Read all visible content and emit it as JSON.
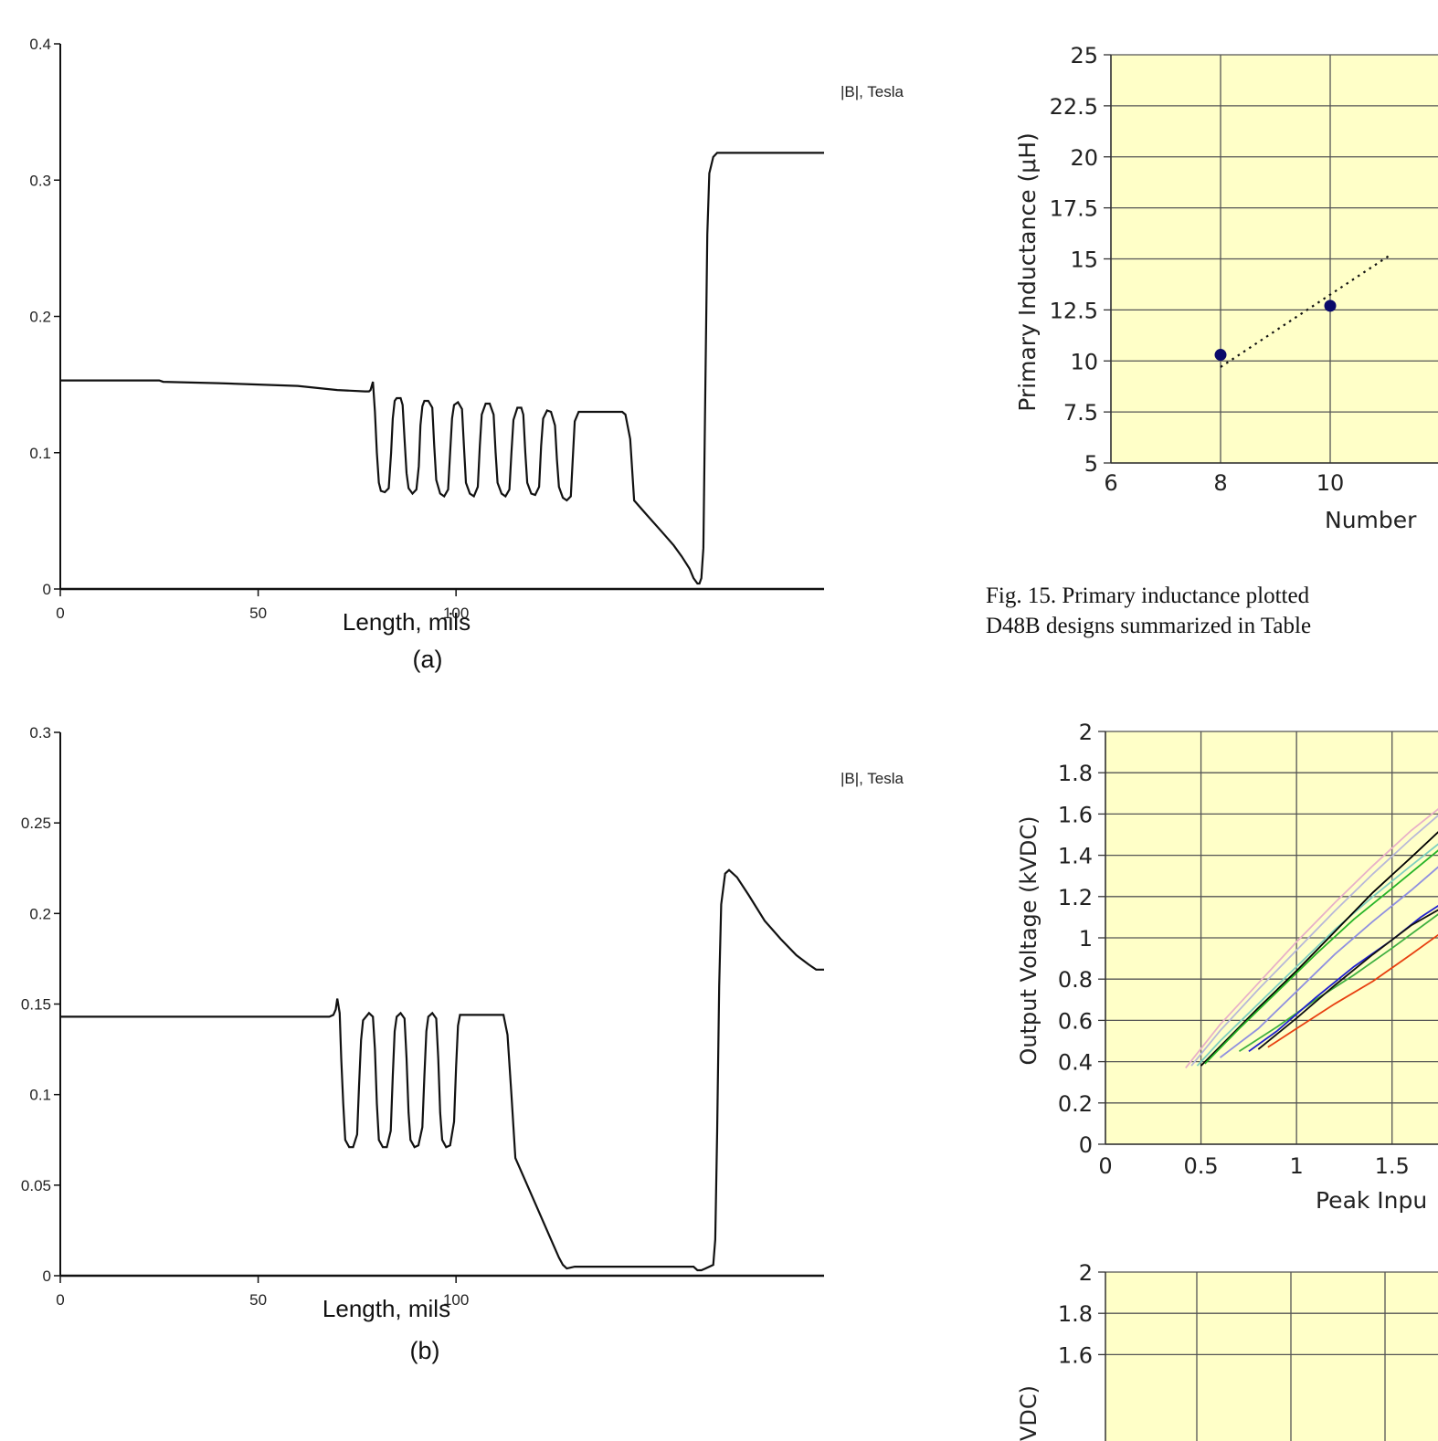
{
  "chart_data": [
    {
      "id": "fig_a",
      "type": "line",
      "sublabel": "(a)",
      "xlabel": "Length, mils",
      "ylabel": "",
      "series_label": "|B|, Tesla",
      "xlim": [
        0,
        193
      ],
      "ylim": [
        0,
        0.4
      ],
      "xticks": [
        "0",
        "50",
        "100"
      ],
      "yticks": [
        "0",
        "0.1",
        "0.2",
        "0.3",
        "0.4"
      ],
      "grid": false,
      "points": [
        [
          0,
          0.153
        ],
        [
          25,
          0.153
        ],
        [
          26,
          0.152
        ],
        [
          40,
          0.151
        ],
        [
          50,
          0.15
        ],
        [
          60,
          0.149
        ],
        [
          70,
          0.146
        ],
        [
          77,
          0.145
        ],
        [
          78,
          0.145
        ],
        [
          78.4,
          0.146
        ],
        [
          79,
          0.152
        ],
        [
          79.5,
          0.13
        ],
        [
          80,
          0.1
        ],
        [
          80.5,
          0.078
        ],
        [
          81,
          0.072
        ],
        [
          82,
          0.071
        ],
        [
          83,
          0.074
        ],
        [
          83.6,
          0.1
        ],
        [
          84,
          0.125
        ],
        [
          84.5,
          0.138
        ],
        [
          85,
          0.14
        ],
        [
          86,
          0.14
        ],
        [
          86.5,
          0.135
        ],
        [
          87,
          0.11
        ],
        [
          87.5,
          0.085
        ],
        [
          88,
          0.074
        ],
        [
          89,
          0.07
        ],
        [
          90,
          0.073
        ],
        [
          90.6,
          0.09
        ],
        [
          91,
          0.12
        ],
        [
          91.5,
          0.134
        ],
        [
          92,
          0.138
        ],
        [
          93,
          0.138
        ],
        [
          94,
          0.133
        ],
        [
          94.5,
          0.105
        ],
        [
          95,
          0.08
        ],
        [
          96,
          0.07
        ],
        [
          97,
          0.068
        ],
        [
          98,
          0.073
        ],
        [
          98.5,
          0.1
        ],
        [
          99,
          0.125
        ],
        [
          99.5,
          0.135
        ],
        [
          100.5,
          0.137
        ],
        [
          101.5,
          0.132
        ],
        [
          102,
          0.105
        ],
        [
          102.5,
          0.078
        ],
        [
          103.5,
          0.07
        ],
        [
          104.5,
          0.068
        ],
        [
          105.5,
          0.075
        ],
        [
          106,
          0.105
        ],
        [
          106.5,
          0.128
        ],
        [
          107.5,
          0.136
        ],
        [
          108.5,
          0.136
        ],
        [
          109.5,
          0.128
        ],
        [
          110,
          0.1
        ],
        [
          110.5,
          0.078
        ],
        [
          111.5,
          0.07
        ],
        [
          112.5,
          0.068
        ],
        [
          113.5,
          0.073
        ],
        [
          114,
          0.1
        ],
        [
          114.5,
          0.124
        ],
        [
          115.5,
          0.133
        ],
        [
          116.5,
          0.133
        ],
        [
          117,
          0.128
        ],
        [
          117.5,
          0.1
        ],
        [
          118,
          0.078
        ],
        [
          119,
          0.07
        ],
        [
          120,
          0.069
        ],
        [
          121,
          0.075
        ],
        [
          121.5,
          0.105
        ],
        [
          122,
          0.125
        ],
        [
          123,
          0.131
        ],
        [
          124,
          0.13
        ],
        [
          125,
          0.12
        ],
        [
          125.5,
          0.095
        ],
        [
          126,
          0.075
        ],
        [
          127,
          0.067
        ],
        [
          128,
          0.065
        ],
        [
          129,
          0.068
        ],
        [
          129.5,
          0.095
        ],
        [
          130,
          0.123
        ],
        [
          131,
          0.13
        ],
        [
          138,
          0.13
        ],
        [
          142,
          0.13
        ],
        [
          142.8,
          0.128
        ],
        [
          144,
          0.11
        ],
        [
          145,
          0.065
        ],
        [
          148,
          0.055
        ],
        [
          152,
          0.042
        ],
        [
          155,
          0.032
        ],
        [
          157,
          0.024
        ],
        [
          159,
          0.015
        ],
        [
          160,
          0.008
        ],
        [
          161,
          0.004
        ],
        [
          161.5,
          0.004
        ],
        [
          162,
          0.008
        ],
        [
          162.5,
          0.03
        ],
        [
          163,
          0.15
        ],
        [
          163.5,
          0.26
        ],
        [
          164,
          0.305
        ],
        [
          165,
          0.317
        ],
        [
          166,
          0.32
        ],
        [
          193,
          0.32
        ]
      ]
    },
    {
      "id": "fig_b",
      "type": "line",
      "sublabel": "(b)",
      "xlabel": "Length, mils",
      "ylabel": "",
      "series_label": "|B|, Tesla",
      "xlim": [
        0,
        193
      ],
      "ylim": [
        0,
        0.3
      ],
      "xticks": [
        "0",
        "50",
        "100"
      ],
      "yticks": [
        "0",
        "0.05",
        "0.1",
        "0.15",
        "0.2",
        "0.25",
        "0.3"
      ],
      "grid": false,
      "points": [
        [
          0,
          0.143
        ],
        [
          68,
          0.143
        ],
        [
          69,
          0.144
        ],
        [
          69.6,
          0.147
        ],
        [
          70,
          0.153
        ],
        [
          70.6,
          0.145
        ],
        [
          71,
          0.12
        ],
        [
          71.5,
          0.095
        ],
        [
          72,
          0.075
        ],
        [
          73,
          0.071
        ],
        [
          74,
          0.071
        ],
        [
          75,
          0.078
        ],
        [
          75.5,
          0.105
        ],
        [
          76,
          0.13
        ],
        [
          76.5,
          0.141
        ],
        [
          78,
          0.145
        ],
        [
          79,
          0.143
        ],
        [
          79.5,
          0.125
        ],
        [
          80,
          0.095
        ],
        [
          80.5,
          0.075
        ],
        [
          81.5,
          0.071
        ],
        [
          82.5,
          0.071
        ],
        [
          83.5,
          0.08
        ],
        [
          84,
          0.11
        ],
        [
          84.5,
          0.135
        ],
        [
          85,
          0.143
        ],
        [
          86,
          0.145
        ],
        [
          87,
          0.142
        ],
        [
          87.5,
          0.12
        ],
        [
          88,
          0.09
        ],
        [
          88.5,
          0.075
        ],
        [
          89.5,
          0.071
        ],
        [
          90.5,
          0.072
        ],
        [
          91.5,
          0.082
        ],
        [
          92,
          0.11
        ],
        [
          92.5,
          0.135
        ],
        [
          93,
          0.143
        ],
        [
          94,
          0.145
        ],
        [
          95,
          0.142
        ],
        [
          95.5,
          0.12
        ],
        [
          96,
          0.09
        ],
        [
          96.5,
          0.075
        ],
        [
          97.5,
          0.071
        ],
        [
          98.5,
          0.072
        ],
        [
          99.5,
          0.085
        ],
        [
          100,
          0.115
        ],
        [
          100.5,
          0.138
        ],
        [
          101,
          0.144
        ],
        [
          102,
          0.144
        ],
        [
          111,
          0.144
        ],
        [
          112,
          0.144
        ],
        [
          113,
          0.133
        ],
        [
          114,
          0.1
        ],
        [
          115,
          0.065
        ],
        [
          117,
          0.055
        ],
        [
          120,
          0.04
        ],
        [
          124,
          0.02
        ],
        [
          126,
          0.01
        ],
        [
          127,
          0.006
        ],
        [
          128,
          0.004
        ],
        [
          130,
          0.005
        ],
        [
          155,
          0.005
        ],
        [
          160,
          0.005
        ],
        [
          161,
          0.003
        ],
        [
          162,
          0.003
        ],
        [
          163,
          0.004
        ],
        [
          164,
          0.005
        ],
        [
          165,
          0.006
        ],
        [
          165.5,
          0.02
        ],
        [
          166,
          0.08
        ],
        [
          166.5,
          0.16
        ],
        [
          167,
          0.205
        ],
        [
          168,
          0.222
        ],
        [
          169,
          0.224
        ],
        [
          171,
          0.22
        ],
        [
          174,
          0.21
        ],
        [
          178,
          0.196
        ],
        [
          182,
          0.186
        ],
        [
          186,
          0.177
        ],
        [
          189,
          0.172
        ],
        [
          191,
          0.169
        ],
        [
          193,
          0.169
        ]
      ]
    },
    {
      "id": "fig_15",
      "type": "scatter",
      "xlabel": "Number",
      "ylabel": "Primary Inductance (μH)",
      "xlim": [
        6,
        12
      ],
      "ylim": [
        5,
        25
      ],
      "xticks": [
        "6",
        "8",
        "10"
      ],
      "yticks": [
        "5",
        "7.5",
        "10",
        "12.5",
        "15",
        "17.5",
        "20",
        "22.5",
        "25"
      ],
      "grid": true,
      "points": [
        [
          8,
          10.3
        ],
        [
          10,
          12.7
        ]
      ],
      "trendline": [
        [
          8,
          9.7
        ],
        [
          11.1,
          15.2
        ]
      ],
      "caption": [
        "Fig. 15.   Primary inductance plotted",
        "D48B designs summarized in Table"
      ]
    },
    {
      "id": "fig_output",
      "type": "line",
      "xlabel": "Peak Inpu",
      "ylabel": "Output Voltage (kVDC)",
      "xlim": [
        0,
        1.75
      ],
      "ylim": [
        0,
        2
      ],
      "xticks": [
        "0",
        "0.5",
        "1",
        "1.5"
      ],
      "yticks": [
        "0",
        "0.2",
        "0.4",
        "0.6",
        "0.8",
        "1",
        "1.2",
        "1.4",
        "1.6",
        "1.8",
        "2"
      ],
      "grid": true,
      "series": [
        {
          "color": "#e8b0c8",
          "values": [
            [
              0.42,
              0.37
            ],
            [
              0.6,
              0.58
            ],
            [
              0.8,
              0.78
            ],
            [
              1.0,
              0.98
            ],
            [
              1.2,
              1.17
            ],
            [
              1.4,
              1.35
            ],
            [
              1.6,
              1.52
            ],
            [
              1.75,
              1.63
            ]
          ]
        },
        {
          "color": "#b8b8d8",
          "values": [
            [
              0.45,
              0.38
            ],
            [
              0.6,
              0.55
            ],
            [
              0.8,
              0.75
            ],
            [
              1.0,
              0.94
            ],
            [
              1.2,
              1.13
            ],
            [
              1.4,
              1.31
            ],
            [
              1.6,
              1.48
            ],
            [
              1.75,
              1.6
            ]
          ]
        },
        {
          "color": "#7fd0c0",
          "values": [
            [
              0.48,
              0.38
            ],
            [
              0.6,
              0.5
            ],
            [
              0.8,
              0.68
            ],
            [
              1.0,
              0.86
            ],
            [
              1.2,
              1.04
            ],
            [
              1.4,
              1.2
            ],
            [
              1.6,
              1.35
            ],
            [
              1.75,
              1.46
            ]
          ]
        },
        {
          "color": "#000000",
          "values": [
            [
              0.5,
              0.38
            ],
            [
              0.65,
              0.52
            ],
            [
              0.8,
              0.66
            ],
            [
              1.0,
              0.84
            ],
            [
              1.2,
              1.03
            ],
            [
              1.4,
              1.22
            ],
            [
              1.6,
              1.39
            ],
            [
              1.75,
              1.52
            ]
          ]
        },
        {
          "color": "#28b428",
          "values": [
            [
              0.52,
              0.39
            ],
            [
              0.7,
              0.56
            ],
            [
              0.9,
              0.74
            ],
            [
              1.1,
              0.92
            ],
            [
              1.3,
              1.09
            ],
            [
              1.5,
              1.24
            ],
            [
              1.75,
              1.43
            ]
          ]
        },
        {
          "color": "#9090e0",
          "values": [
            [
              0.6,
              0.42
            ],
            [
              0.8,
              0.56
            ],
            [
              1.0,
              0.74
            ],
            [
              1.2,
              0.92
            ],
            [
              1.4,
              1.08
            ],
            [
              1.6,
              1.23
            ],
            [
              1.75,
              1.35
            ]
          ]
        },
        {
          "color": "#40b040",
          "values": [
            [
              0.7,
              0.45
            ],
            [
              0.9,
              0.57
            ],
            [
              1.1,
              0.7
            ],
            [
              1.3,
              0.82
            ],
            [
              1.5,
              0.95
            ],
            [
              1.75,
              1.12
            ]
          ]
        },
        {
          "color": "#2020d0",
          "values": [
            [
              0.75,
              0.45
            ],
            [
              0.9,
              0.55
            ],
            [
              1.1,
              0.71
            ],
            [
              1.3,
              0.86
            ],
            [
              1.5,
              0.99
            ],
            [
              1.65,
              1.1
            ],
            [
              1.75,
              1.16
            ]
          ]
        },
        {
          "color": "#101010",
          "values": [
            [
              0.8,
              0.46
            ],
            [
              1.0,
              0.61
            ],
            [
              1.2,
              0.77
            ],
            [
              1.4,
              0.92
            ],
            [
              1.6,
              1.06
            ],
            [
              1.75,
              1.14
            ]
          ]
        },
        {
          "color": "#e84010",
          "values": [
            [
              0.85,
              0.47
            ],
            [
              1.0,
              0.56
            ],
            [
              1.2,
              0.68
            ],
            [
              1.4,
              0.79
            ],
            [
              1.6,
              0.92
            ],
            [
              1.75,
              1.02
            ]
          ]
        }
      ]
    },
    {
      "id": "fig_output_2",
      "type": "line",
      "ylabel": "(kVDC)",
      "ylabel_visible": "VDC)",
      "xlim": [
        0,
        1.75
      ],
      "ylim": [
        0,
        2
      ],
      "yticks": [
        "2",
        "1.8",
        "1.6"
      ],
      "grid": true
    }
  ]
}
